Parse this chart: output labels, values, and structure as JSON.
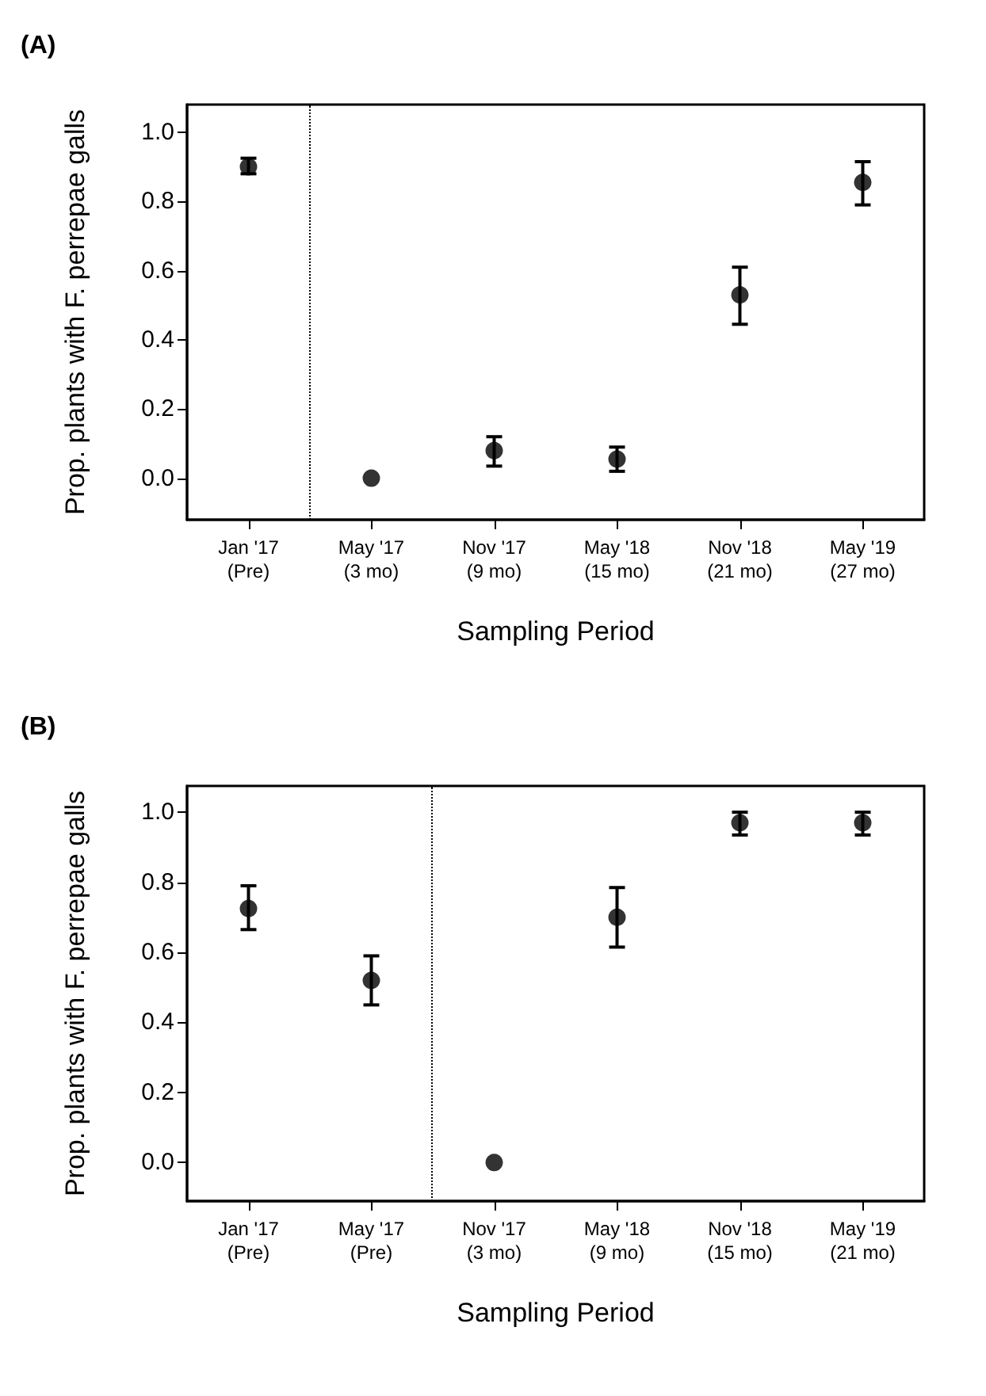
{
  "chart_data": [
    {
      "type": "scatter",
      "title": "(A)",
      "xlabel": "Sampling Period",
      "ylabel": "Prop. plants with F. perrepae galls",
      "color": "#000000",
      "marker": "circle",
      "grid": false,
      "categories": [
        "Jan '17\n(Pre)",
        "May '17\n(3 mo)",
        "Nov '17\n(9 mo)",
        "May '18\n(15 mo)",
        "Nov '18\n(21 mo)",
        "May '19\n(27 mo)"
      ],
      "values": [
        0.9,
        0.0,
        0.08,
        0.055,
        0.53,
        0.855
      ],
      "errors": [
        [
          0.88,
          0.925
        ],
        null,
        [
          0.035,
          0.12
        ],
        [
          0.02,
          0.09
        ],
        [
          0.445,
          0.61
        ],
        [
          0.79,
          0.915
        ]
      ],
      "ylim": [
        -0.12,
        1.08
      ],
      "yticks": [
        {
          "value": 0,
          "label": "0.0"
        },
        {
          "value": 0.2,
          "label": "0.2"
        },
        {
          "value": 0.4,
          "label": "0.4"
        },
        {
          "value": 0.6,
          "label": "0.6"
        },
        {
          "value": 0.8,
          "label": "0.8"
        },
        {
          "value": 1,
          "label": "1.0"
        }
      ]
    },
    {
      "type": "scatter",
      "title": "(B)",
      "xlabel": "Sampling Period",
      "ylabel": "Prop. plants with F. perrepae galls",
      "color": "#000000",
      "marker": "circle",
      "grid": false,
      "categories": [
        "Jan '17\n(Pre)",
        "May '17\n(Pre)",
        "Nov '17\n(3 mo)",
        "May '18\n(9 mo)",
        "Nov '18\n(15 mo)",
        "May '19\n(21 mo)"
      ],
      "values": [
        0.725,
        0.52,
        0.0,
        0.7,
        0.97,
        0.97
      ],
      "errors": [
        [
          0.665,
          0.79
        ],
        [
          0.45,
          0.59
        ],
        null,
        [
          0.615,
          0.785
        ],
        [
          0.935,
          1.0
        ],
        [
          0.935,
          1.0
        ]
      ],
      "ylim": [
        -0.11,
        1.075
      ],
      "yticks": [
        {
          "value": 0,
          "label": "0.0"
        },
        {
          "value": 0.2,
          "label": "0.2"
        },
        {
          "value": 0.4,
          "label": "0.4"
        },
        {
          "value": 0.6,
          "label": "0.6"
        },
        {
          "value": 0.8,
          "label": "0.8"
        },
        {
          "value": 1,
          "label": "1.0"
        }
      ]
    }
  ]
}
